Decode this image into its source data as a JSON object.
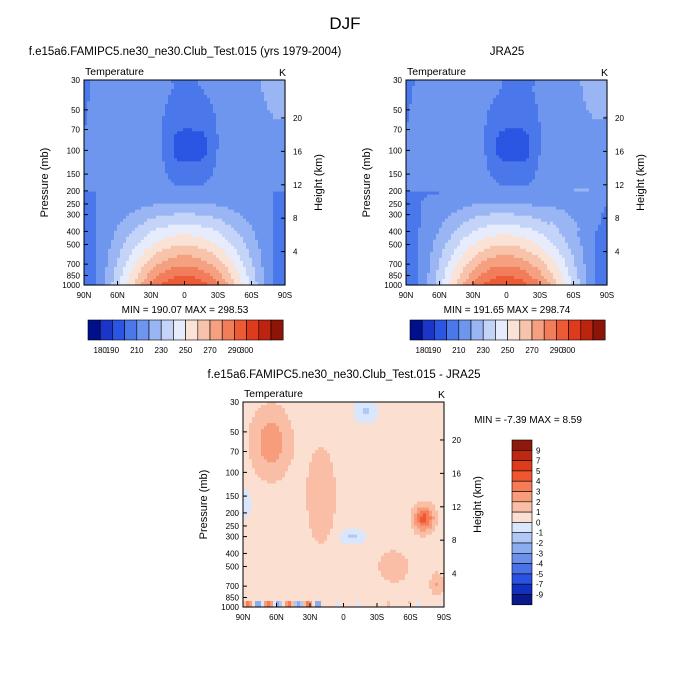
{
  "figure_title": "DJF",
  "panels": [
    {
      "title": "f.e15a6.FAMIPC5.ne30_ne30.Club_Test.015 (yrs 1979-2004)",
      "left_label": "Temperature",
      "right_label": "K",
      "stats": "MIN = 190.07  MAX = 298.53"
    },
    {
      "title": "JRA25",
      "left_label": "Temperature",
      "right_label": "K",
      "stats": "MIN = 191.65  MAX = 298.74"
    },
    {
      "title": "f.e15a6.FAMIPC5.ne30_ne30.Club_Test.015 - JRA25",
      "left_label": "Temperature",
      "right_label": "K",
      "stats": "MIN =  -7.39  MAX =   8.59"
    }
  ],
  "axes": {
    "ylabel": "Pressure (mb)",
    "ylabel_right": "Height (km)",
    "pressure_ticks": [
      "30",
      "50",
      "70",
      "100",
      "150",
      "200",
      "250",
      "300",
      "400",
      "500",
      "700",
      "850",
      "1000"
    ],
    "height_ticks": [
      "20",
      "16",
      "12",
      "8",
      "4"
    ],
    "lat_ticks": [
      "90N",
      "60N",
      "30N",
      "0",
      "30S",
      "60S",
      "90S"
    ]
  },
  "colorbars": {
    "abs_labels": [
      "180",
      "190",
      "210",
      "230",
      "250",
      "270",
      "290",
      "300"
    ],
    "abs_colors": [
      "#00108a",
      "#1a35c8",
      "#2b55e3",
      "#4a78ea",
      "#6e96ef",
      "#9ab5f4",
      "#c4d4f8",
      "#e6ecfb",
      "#fbe2d6",
      "#f7c4ab",
      "#f5a181",
      "#f27d5a",
      "#ec5a36",
      "#dd3b1c",
      "#bd2410",
      "#8d1508"
    ],
    "diff_labels": [
      "9",
      "7",
      "5",
      "4",
      "3",
      "2",
      "1",
      "0",
      "-1",
      "-2",
      "-3",
      "-4",
      "-5",
      "-7",
      "-9"
    ],
    "diff_colors": [
      "#8b1a0c",
      "#bc2812",
      "#dd3b1c",
      "#ef5730",
      "#f57c56",
      "#f79d7c",
      "#f9bea5",
      "#fbdfd0",
      "#d9e6fb",
      "#b0c8f5",
      "#8cacf0",
      "#6a90ec",
      "#4a72e8",
      "#2a52e0",
      "#1230c0",
      "#0a1a8c"
    ]
  },
  "chart_data": [
    {
      "type": "heatmap",
      "title": "f.e15a6.FAMIPC5.ne30_ne30.Club_Test.015 (yrs 1979-2004)",
      "variable": "Temperature",
      "units": "K",
      "x": [
        "90N",
        "60N",
        "30N",
        "0",
        "30S",
        "60S",
        "90S"
      ],
      "y": [
        30,
        50,
        70,
        100,
        150,
        200,
        250,
        300,
        400,
        500,
        700,
        850,
        1000
      ],
      "xlabel": "",
      "ylabel": "Pressure (mb)",
      "contour_levels": [
        180,
        190,
        200,
        210,
        220,
        230,
        240,
        250,
        260,
        270,
        280,
        290,
        300
      ],
      "min": 190.07,
      "max": 298.53
    },
    {
      "type": "heatmap",
      "title": "JRA25",
      "variable": "Temperature",
      "units": "K",
      "x": [
        "90N",
        "60N",
        "30N",
        "0",
        "30S",
        "60S",
        "90S"
      ],
      "y": [
        30,
        50,
        70,
        100,
        150,
        200,
        250,
        300,
        400,
        500,
        700,
        850,
        1000
      ],
      "xlabel": "",
      "ylabel": "Pressure (mb)",
      "contour_levels": [
        180,
        190,
        200,
        210,
        220,
        230,
        240,
        250,
        260,
        270,
        280,
        290,
        300
      ],
      "min": 191.65,
      "max": 298.74
    },
    {
      "type": "heatmap",
      "title": "f.e15a6.FAMIPC5.ne30_ne30.Club_Test.015 - JRA25",
      "variable": "Temperature",
      "units": "K",
      "x": [
        "90N",
        "60N",
        "30N",
        "0",
        "30S",
        "60S",
        "90S"
      ],
      "y": [
        30,
        50,
        70,
        100,
        150,
        200,
        250,
        300,
        400,
        500,
        700,
        850,
        1000
      ],
      "xlabel": "",
      "ylabel": "Pressure (mb)",
      "contour_levels": [
        -9,
        -7,
        -5,
        -4,
        -3,
        -2,
        -1,
        0,
        1,
        2,
        3,
        4,
        5,
        7,
        9
      ],
      "min": -7.39,
      "max": 8.59
    }
  ]
}
